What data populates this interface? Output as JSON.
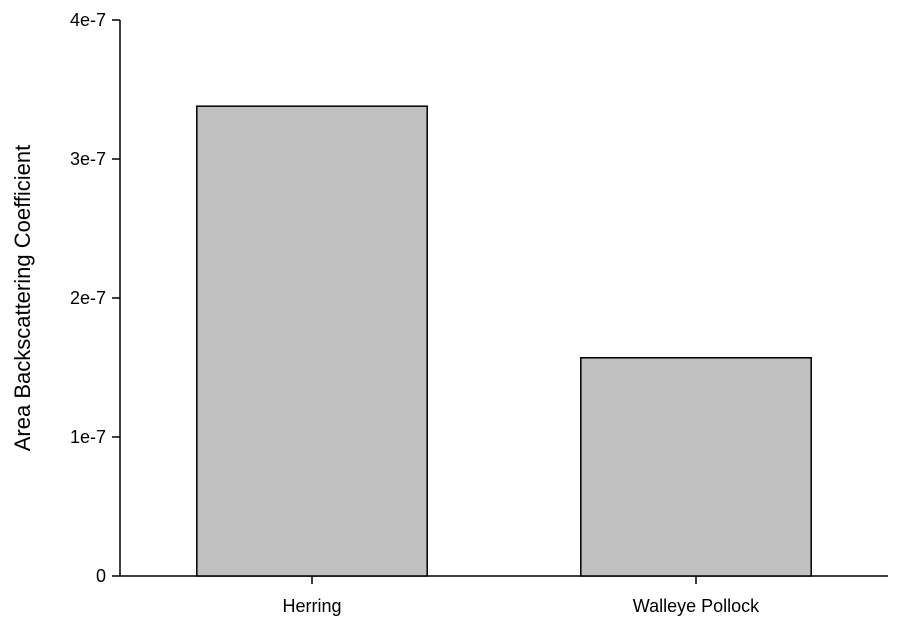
{
  "chart_data": {
    "type": "bar",
    "title": "",
    "xlabel": "",
    "ylabel": "Area Backscattering Coefficient",
    "categories": [
      "Herring",
      "Walleye Pollock"
    ],
    "values": [
      3.38e-07,
      1.57e-07
    ],
    "ylim": [
      0,
      4e-07
    ],
    "yticks": [
      0,
      1e-07,
      2e-07,
      3e-07,
      4e-07
    ],
    "ytick_labels": [
      "0",
      "1e-7",
      "2e-7",
      "3e-7",
      "4e-7"
    ],
    "grid": false,
    "legend": "none",
    "bar_color": "#c0c0c0",
    "bar_edge_color": "#000000",
    "axis_color": "#000000"
  }
}
